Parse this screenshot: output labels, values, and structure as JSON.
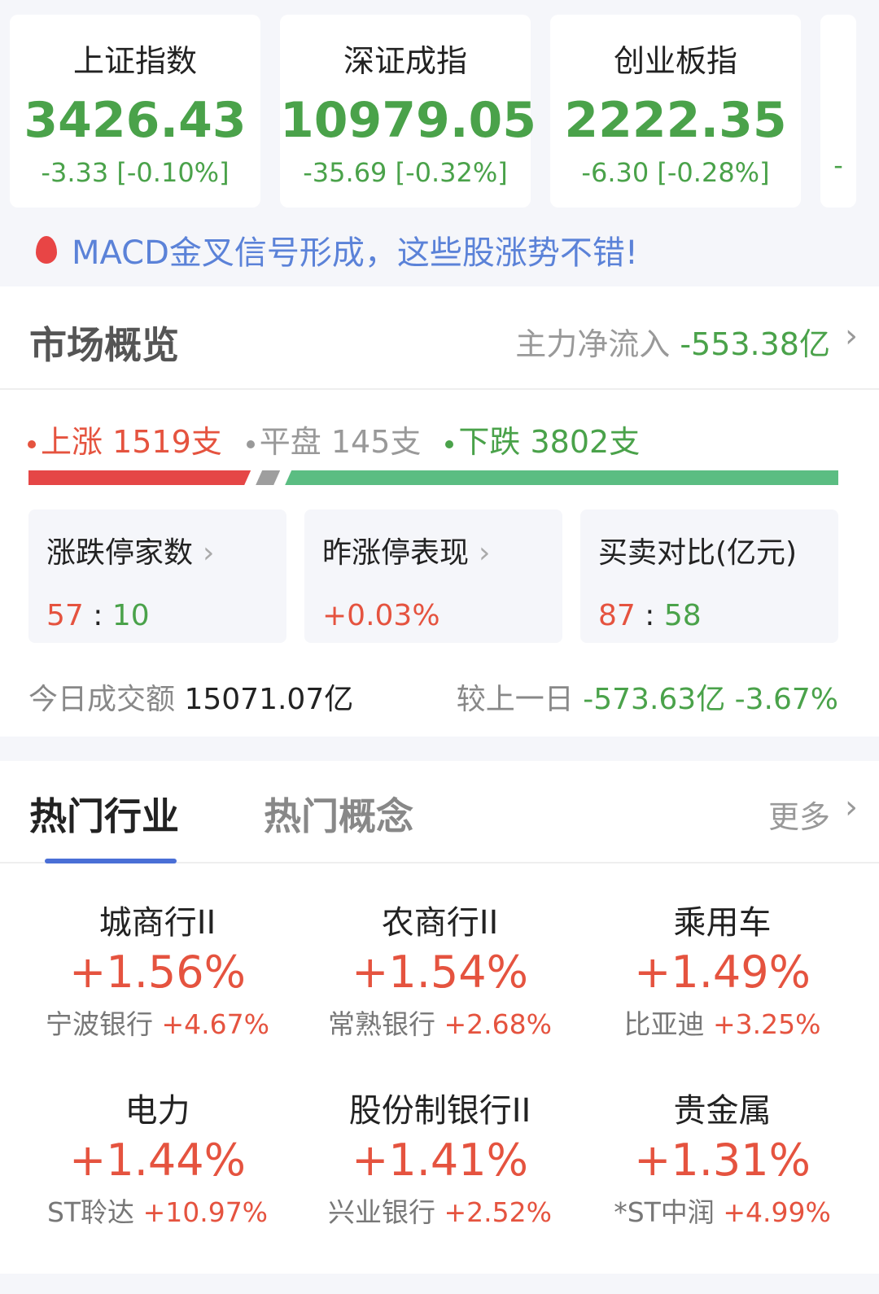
{
  "indices": [
    {
      "name": "上证指数",
      "value": "3426.43",
      "change": "-3.33 [-0.10%]"
    },
    {
      "name": "深证成指",
      "value": "10979.05",
      "change": "-35.69 [-0.32%]"
    },
    {
      "name": "创业板指",
      "value": "2222.35",
      "change": "-6.30 [-0.28%]"
    },
    {
      "name": "",
      "value": "",
      "change": "-"
    }
  ],
  "banner": {
    "text": "MACD金叉信号形成，这些股涨势不错!",
    "icon": "flame-icon"
  },
  "overview": {
    "title": "市场概览",
    "flow_label": "主力净流入",
    "flow_value": "-553.38亿",
    "up_label": "上涨 1519支",
    "flat_label": "平盘 145支",
    "down_label": "下跌 3802支",
    "up": 1519,
    "flat": 145,
    "down": 3802,
    "boxes": [
      {
        "title": "涨跌停家数",
        "arrow": "›",
        "left": "57",
        "sep": " : ",
        "right": "10"
      },
      {
        "title": "昨涨停表现",
        "arrow": "›",
        "value": "+0.03%"
      },
      {
        "title": "买卖对比(亿元)",
        "left": "87",
        "sep": " : ",
        "right": "58"
      }
    ],
    "turnover_label": "今日成交额",
    "turnover_value": "15071.07亿",
    "compare_label": "较上一日",
    "compare_value": "-573.63亿 -3.67%"
  },
  "colors": {
    "up": "#e5533f",
    "down": "#4aa24a",
    "flat": "#9e9e9e",
    "bar_up": "#e54646",
    "bar_down": "#5bbd82"
  },
  "hot": {
    "tabs": [
      "热门行业",
      "热门概念"
    ],
    "more": "更多",
    "items": [
      {
        "name": "城商行II",
        "pct": "+1.56%",
        "stock": "宁波银行",
        "stock_pct": "+4.67%"
      },
      {
        "name": "农商行II",
        "pct": "+1.54%",
        "stock": "常熟银行",
        "stock_pct": "+2.68%"
      },
      {
        "name": "乘用车",
        "pct": "+1.49%",
        "stock": "比亚迪",
        "stock_pct": "+3.25%"
      },
      {
        "name": "电力",
        "pct": "+1.44%",
        "stock": "ST聆达",
        "stock_pct": "+10.97%"
      },
      {
        "name": "股份制银行II",
        "pct": "+1.41%",
        "stock": "兴业银行",
        "stock_pct": "+2.52%"
      },
      {
        "name": "贵金属",
        "pct": "+1.31%",
        "stock": "*ST中润",
        "stock_pct": "+4.99%"
      }
    ]
  }
}
